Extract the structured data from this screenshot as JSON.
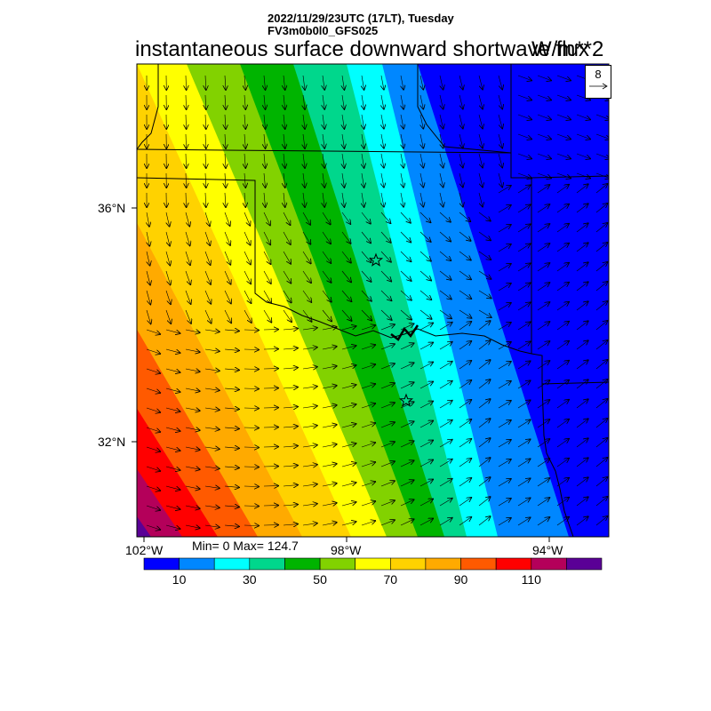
{
  "header": {
    "date_line": "2022/11/29/23UTC (17LT), Tuesday",
    "model_line": "FV3m0b0l0_GFS025",
    "title": "instantaneous surface downward shortwave flux",
    "units": "W/m**2"
  },
  "map": {
    "lat_labels": [
      "36°N",
      "32°N"
    ],
    "lon_labels": [
      "102°W",
      "98°W",
      "94°W"
    ],
    "min_max": "Min= 0 Max= 124.7",
    "reference_vector": "8"
  },
  "colorbar": {
    "colors": [
      "#0000ff",
      "#0087ff",
      "#00ffff",
      "#00d78c",
      "#00b400",
      "#82d200",
      "#ffff00",
      "#ffd200",
      "#ffaa00",
      "#ff5a00",
      "#ff0000",
      "#b4005a",
      "#5a0096"
    ],
    "tick_labels": [
      "10",
      "30",
      "50",
      "70",
      "90",
      "110"
    ]
  }
}
